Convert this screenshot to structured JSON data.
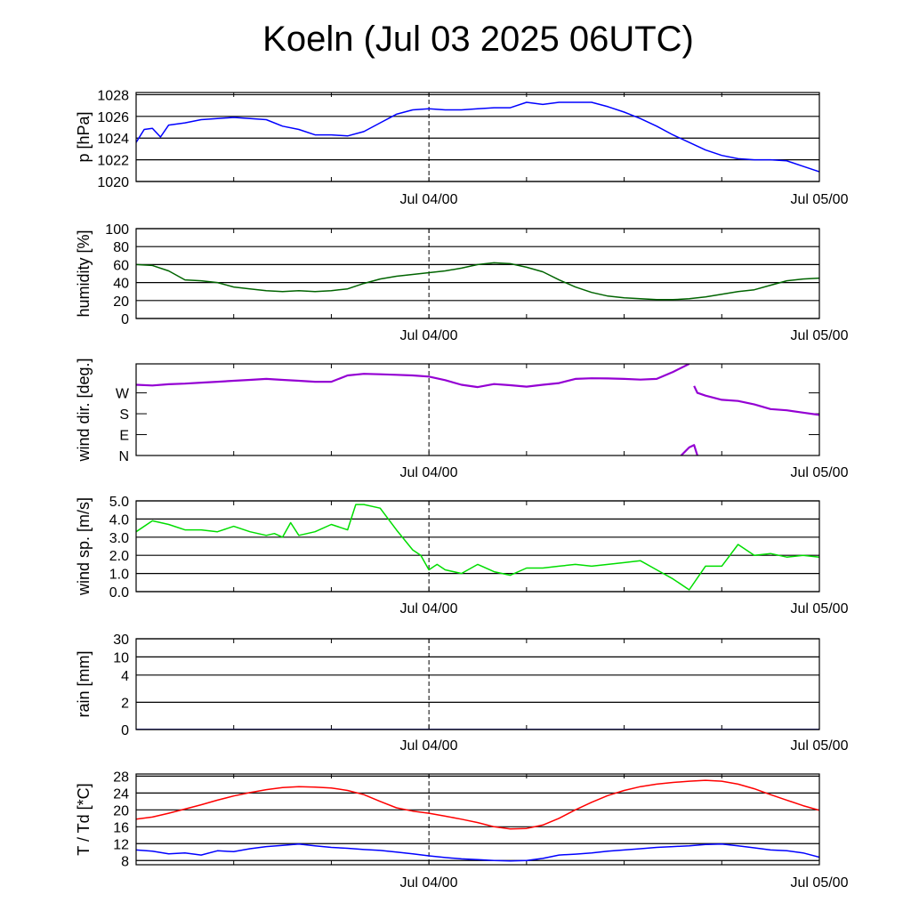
{
  "title": "Koeln (Jul 03 2025 06UTC)",
  "x_axis": {
    "start": "2025-07-03T06:00Z",
    "end": "2025-07-05T00:00Z",
    "tick_labels": [
      "Jul 04/00",
      "Jul 05/00"
    ],
    "minor_ticks_every_hours": 6,
    "vline_at": "Jul 04/00"
  },
  "chart_data": [
    {
      "type": "line",
      "ylabel": "p [hPa]",
      "ylim": [
        1020,
        1028.2
      ],
      "yticks": [
        1020,
        1022,
        1024,
        1026,
        1028
      ],
      "ytick_labels": [
        "1020",
        "1022",
        "1024",
        "1026",
        "1028"
      ],
      "grid": true,
      "series": [
        {
          "color": "#0000ff",
          "x_hours": [
            0,
            0.5,
            1,
            1.5,
            2,
            3,
            4,
            5,
            6,
            7,
            8,
            9,
            10,
            11,
            12,
            13,
            14,
            15,
            16,
            17,
            18,
            19,
            20,
            21,
            22,
            23,
            24,
            25,
            26,
            27,
            28,
            29,
            30,
            31,
            32,
            33,
            34,
            35,
            36,
            37,
            38,
            39,
            40,
            41,
            42
          ],
          "values": [
            1023.6,
            1024.8,
            1024.9,
            1024.1,
            1025.2,
            1025.4,
            1025.7,
            1025.8,
            1025.9,
            1025.8,
            1025.7,
            1025.1,
            1024.8,
            1024.3,
            1024.3,
            1024.2,
            1024.6,
            1025.4,
            1026.2,
            1026.6,
            1026.7,
            1026.6,
            1026.6,
            1026.7,
            1026.8,
            1026.8,
            1027.3,
            1027.1,
            1027.3,
            1027.3,
            1027.3,
            1026.9,
            1026.4,
            1025.8,
            1025.1,
            1024.3,
            1023.6,
            1022.9,
            1022.4,
            1022.1,
            1022.0,
            1022.0,
            1021.9,
            1021.4,
            1020.9
          ]
        }
      ]
    },
    {
      "type": "line",
      "ylabel": "humidity [%]",
      "ylim": [
        0,
        100
      ],
      "yticks": [
        0,
        20,
        40,
        60,
        80,
        100
      ],
      "ytick_labels": [
        "0",
        "20",
        "40",
        "60",
        "80",
        "100"
      ],
      "grid": true,
      "series": [
        {
          "color": "#006400",
          "x_hours": [
            0,
            1,
            2,
            3,
            4,
            5,
            6,
            7,
            8,
            9,
            10,
            11,
            12,
            13,
            14,
            15,
            16,
            17,
            18,
            19,
            20,
            21,
            22,
            23,
            24,
            25,
            26,
            27,
            28,
            29,
            30,
            31,
            32,
            33,
            34,
            35,
            36,
            37,
            38,
            39,
            40,
            41,
            42
          ],
          "values": [
            60,
            59,
            53,
            43,
            42,
            40,
            35,
            33,
            31,
            30,
            31,
            30,
            31,
            33,
            39,
            44,
            47,
            49,
            51,
            53,
            56,
            60,
            62,
            61,
            57,
            52,
            43,
            35,
            29,
            25,
            23,
            22,
            21,
            21,
            22,
            24,
            27,
            30,
            32,
            37,
            42,
            44,
            45
          ]
        }
      ]
    },
    {
      "type": "scatter",
      "ylabel": "wind dir. [deg.]",
      "ylim": [
        0,
        395
      ],
      "yticks": [
        0,
        90,
        180,
        270
      ],
      "ytick_labels": [
        "N",
        "E",
        "S",
        "W"
      ],
      "grid": false,
      "series": [
        {
          "color": "#9400d3",
          "x_hours": [
            0,
            1,
            2,
            3,
            4,
            5,
            6,
            7,
            8,
            9,
            10,
            11,
            12,
            13,
            14,
            15,
            16,
            17,
            18,
            19,
            20,
            21,
            22,
            23,
            24,
            25,
            26,
            27,
            28,
            29,
            30,
            31,
            32,
            33,
            34
          ],
          "values": [
            305,
            302,
            307,
            310,
            314,
            318,
            322,
            326,
            330,
            326,
            322,
            318,
            318,
            345,
            352,
            350,
            348,
            345,
            340,
            325,
            305,
            295,
            308,
            303,
            297,
            305,
            312,
            330,
            333,
            332,
            330,
            327,
            330,
            360,
            395
          ]
        },
        {
          "color": "#9400d3",
          "x_hours": [
            34.3,
            34.5,
            35,
            36,
            37,
            38,
            39,
            40,
            41,
            42
          ],
          "values": [
            300,
            270,
            258,
            240,
            235,
            220,
            200,
            195,
            185,
            175
          ]
        },
        {
          "color": "#9400d3",
          "x_hours": [
            33.5,
            34,
            34.3,
            34.5
          ],
          "values": [
            0,
            35,
            45,
            0
          ]
        }
      ]
    },
    {
      "type": "line",
      "ylabel": "wind sp. [m/s]",
      "ylim": [
        0,
        5
      ],
      "yticks": [
        0,
        1,
        2,
        3,
        4,
        5
      ],
      "ytick_labels": [
        "0.0",
        "1.0",
        "2.0",
        "3.0",
        "4.0",
        "5.0"
      ],
      "grid": true,
      "series": [
        {
          "color": "#00dd00",
          "x_hours": [
            0,
            1,
            2,
            3,
            4,
            5,
            6,
            7,
            8,
            8.5,
            9,
            9.5,
            10,
            11,
            12,
            13,
            13.5,
            14,
            15,
            16,
            17,
            17.5,
            18,
            18.5,
            19,
            20,
            21,
            22,
            23,
            24,
            25,
            26,
            27,
            28,
            29,
            30,
            31,
            32,
            33,
            34,
            35,
            36,
            37,
            38,
            39,
            40,
            41,
            42
          ],
          "values": [
            3.3,
            3.9,
            3.7,
            3.4,
            3.4,
            3.3,
            3.6,
            3.3,
            3.1,
            3.2,
            3.0,
            3.8,
            3.1,
            3.3,
            3.7,
            3.4,
            4.8,
            4.8,
            4.6,
            3.4,
            2.3,
            2.0,
            1.2,
            1.5,
            1.2,
            1.0,
            1.5,
            1.1,
            0.9,
            1.3,
            1.3,
            1.4,
            1.5,
            1.4,
            1.5,
            1.6,
            1.7,
            1.2,
            0.7,
            0.1,
            1.4,
            1.4,
            2.6,
            2.0,
            2.1,
            1.9,
            2.0,
            1.9
          ]
        }
      ]
    },
    {
      "type": "line",
      "ylabel": "rain [mm]",
      "ylim": [
        0,
        30
      ],
      "yticks": [
        0,
        2,
        4,
        10,
        30
      ],
      "ytick_labels": [
        "0",
        "2",
        "4",
        "10",
        "30"
      ],
      "grid": true,
      "series": [
        {
          "color": "#0000ff",
          "x_hours": [
            0,
            42
          ],
          "values": [
            0,
            0
          ]
        }
      ]
    },
    {
      "type": "line",
      "ylabel": "T / Td [*C]",
      "ylim": [
        7,
        28.5
      ],
      "yticks": [
        8,
        12,
        16,
        20,
        24,
        28
      ],
      "ytick_labels": [
        "8",
        "12",
        "16",
        "20",
        "24",
        "28"
      ],
      "grid": true,
      "series": [
        {
          "color": "#ff0000",
          "x_hours": [
            0,
            1,
            2,
            3,
            4,
            5,
            6,
            7,
            8,
            9,
            10,
            11,
            12,
            13,
            14,
            15,
            16,
            17,
            18,
            19,
            20,
            21,
            22,
            23,
            24,
            25,
            26,
            27,
            28,
            29,
            30,
            31,
            32,
            33,
            34,
            35,
            36,
            37,
            38,
            39,
            40,
            41,
            42
          ],
          "values": [
            17.8,
            18.3,
            19.2,
            20.2,
            21.2,
            22.3,
            23.3,
            24.1,
            24.8,
            25.3,
            25.5,
            25.4,
            25.2,
            24.6,
            23.6,
            22.0,
            20.5,
            19.7,
            19.2,
            18.5,
            17.8,
            17.0,
            16.0,
            15.5,
            15.6,
            16.4,
            18.0,
            20.0,
            21.8,
            23.4,
            24.6,
            25.5,
            26.1,
            26.5,
            26.8,
            27.0,
            26.8,
            26.1,
            25.0,
            23.6,
            22.3,
            21.0,
            19.9
          ]
        },
        {
          "color": "#0000ff",
          "x_hours": [
            0,
            1,
            2,
            3,
            4,
            5,
            6,
            7,
            8,
            9,
            10,
            11,
            12,
            13,
            14,
            15,
            16,
            17,
            18,
            19,
            20,
            21,
            22,
            23,
            24,
            25,
            26,
            27,
            28,
            29,
            30,
            31,
            32,
            33,
            34,
            35,
            36,
            37,
            38,
            39,
            40,
            41,
            42
          ],
          "values": [
            10.5,
            10.2,
            9.6,
            9.8,
            9.3,
            10.3,
            10.1,
            10.8,
            11.3,
            11.6,
            11.9,
            11.5,
            11.1,
            10.9,
            10.6,
            10.4,
            10.0,
            9.6,
            9.1,
            8.7,
            8.4,
            8.2,
            8.0,
            7.9,
            8.0,
            8.5,
            9.3,
            9.5,
            9.8,
            10.2,
            10.5,
            10.8,
            11.1,
            11.3,
            11.5,
            11.8,
            11.9,
            11.5,
            11.0,
            10.5,
            10.3,
            9.8,
            8.8
          ]
        }
      ]
    }
  ]
}
